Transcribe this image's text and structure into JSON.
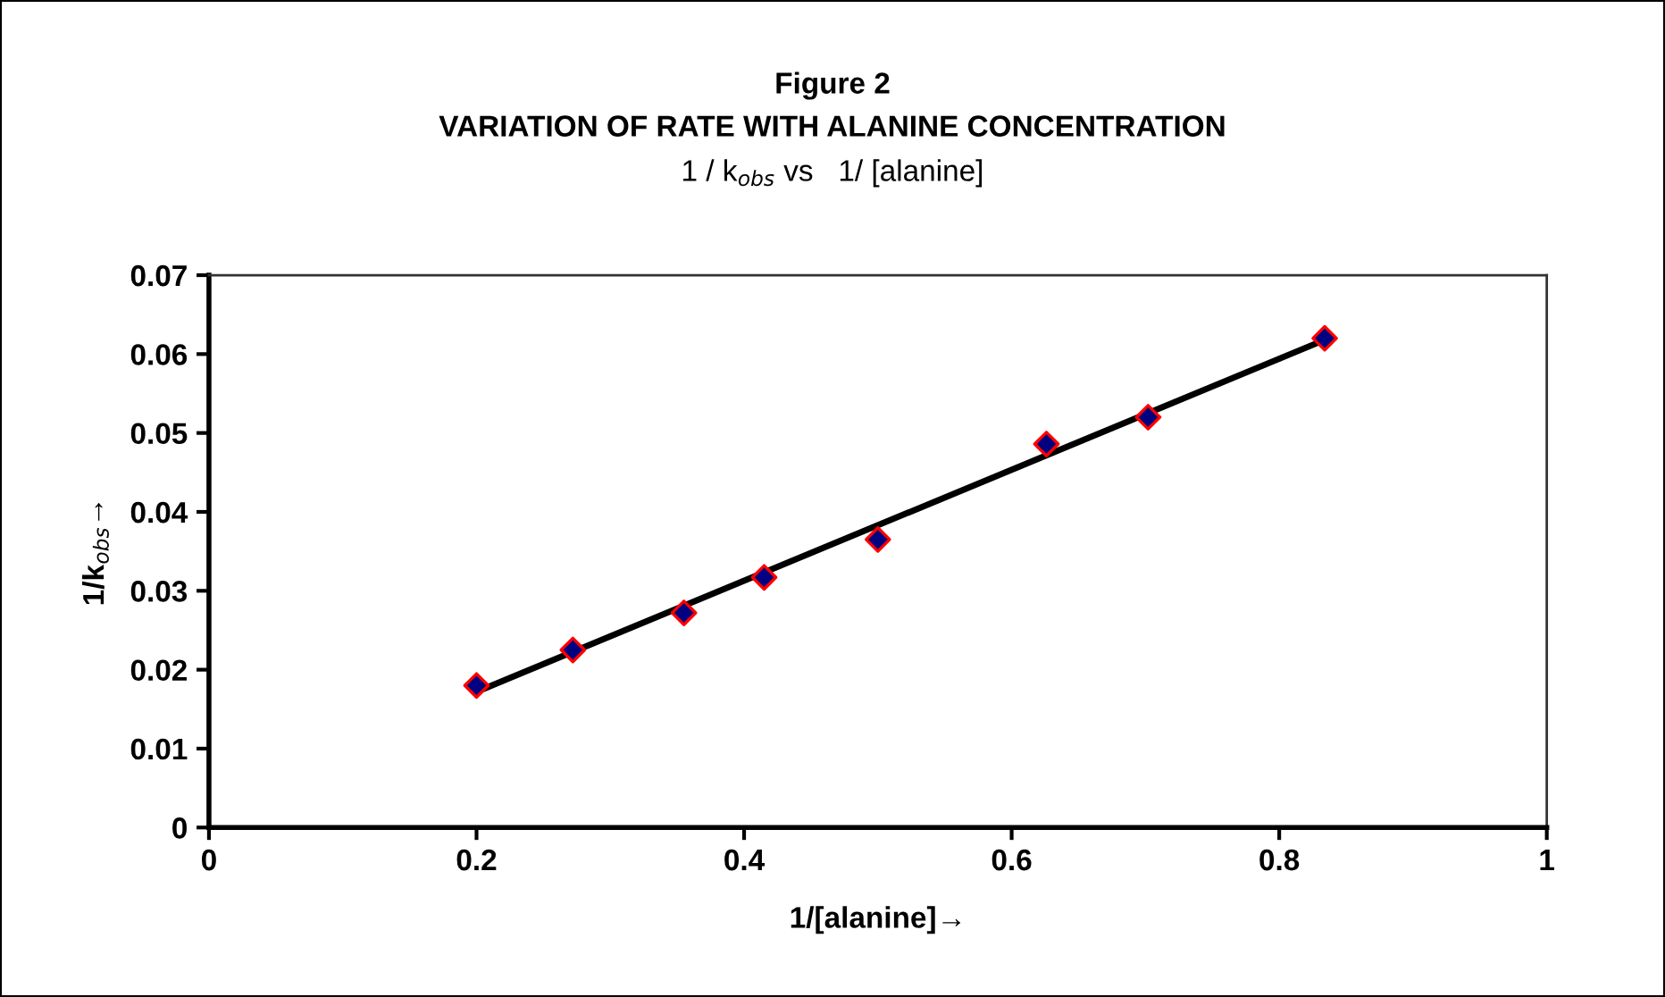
{
  "chart_data": {
    "type": "scatter",
    "title": "Figure 2",
    "subtitle": "VARIATION OF RATE WITH ALANINE CONCENTRATION",
    "annotations": [
      "1 / k$_{obs}$ vs   1/ [alanine]"
    ],
    "xlabel": "1/[alanine]→",
    "ylabel": "1/k$_{obs}$→",
    "marker": "diamond",
    "grid": false,
    "legend": false,
    "xlim": [
      0,
      1
    ],
    "xticks": [
      0,
      0.2,
      0.4,
      0.6,
      0.8,
      1
    ],
    "ylim": [
      0,
      0.07
    ],
    "yticks": [
      0,
      0.01,
      0.02,
      0.03,
      0.04,
      0.05,
      0.06,
      0.07
    ],
    "series": [
      {
        "color": "#000080",
        "x": [
          0.2,
          0.272,
          0.355,
          0.415,
          0.5,
          0.626,
          0.702,
          0.834
        ],
        "values": [
          0.018,
          0.0225,
          0.0272,
          0.0317,
          0.0365,
          0.0486,
          0.052,
          0.062
        ]
      },
      {
        "type": "line",
        "color": "#000000",
        "line_style": "solid",
        "marker": "none",
        "x": [
          0.2,
          0.834
        ],
        "values": [
          0.0172,
          0.0618
        ]
      }
    ]
  }
}
